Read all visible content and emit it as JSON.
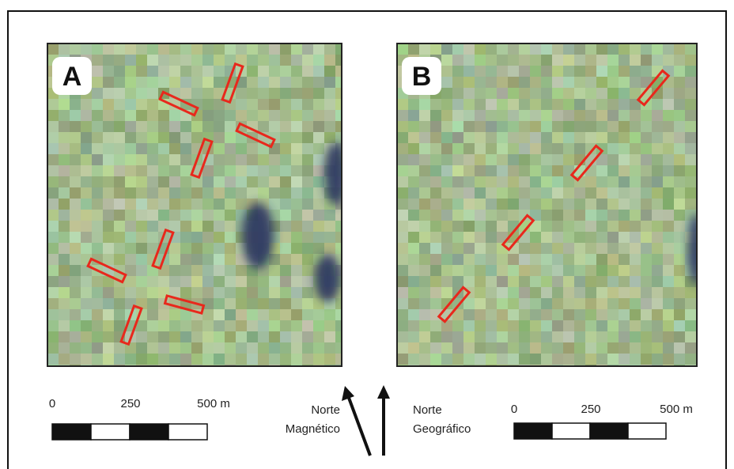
{
  "panels": [
    {
      "label": "A",
      "scale": {
        "ticks": [
          "0",
          "250",
          "500 m"
        ]
      }
    },
    {
      "label": "B",
      "scale": {
        "ticks": [
          "0",
          "250",
          "500 m"
        ]
      }
    }
  ],
  "north": {
    "magnetic": [
      "Norte",
      "Magnético"
    ],
    "geographic": [
      "Norte",
      "Geográfico"
    ]
  }
}
